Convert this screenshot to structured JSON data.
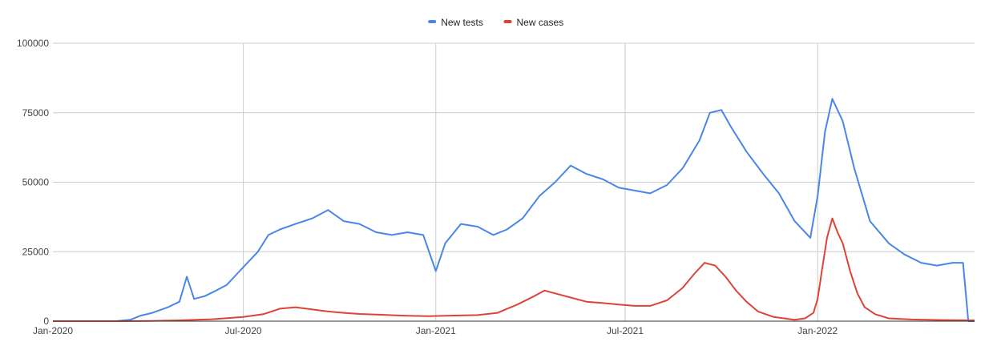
{
  "chart_data": {
    "type": "line",
    "title": "",
    "xlabel": "",
    "ylabel": "",
    "legend_position": "top-center",
    "grid": true,
    "ylim": [
      0,
      100000
    ],
    "xlim": [
      "2020-01-01",
      "2022-05-31"
    ],
    "x_ticks": [
      "Jan-2020",
      "Jul-2020",
      "Jan-2021",
      "Jul-2021",
      "Jan-2022"
    ],
    "y_ticks": [
      "0",
      "25000",
      "50000",
      "75000",
      "100000"
    ],
    "y_tick_values": [
      0,
      25000,
      50000,
      75000,
      100000
    ],
    "x_tick_dates": [
      "2020-01-01",
      "2020-07-01",
      "2021-01-01",
      "2021-07-01",
      "2022-01-01"
    ],
    "series": [
      {
        "name": "New tests",
        "color": "#4a86e8",
        "points": [
          [
            "2020-01-01",
            0
          ],
          [
            "2020-03-01",
            0
          ],
          [
            "2020-03-15",
            500
          ],
          [
            "2020-03-25",
            2000
          ],
          [
            "2020-04-05",
            3000
          ],
          [
            "2020-04-20",
            5000
          ],
          [
            "2020-05-01",
            7000
          ],
          [
            "2020-05-08",
            16000
          ],
          [
            "2020-05-15",
            8000
          ],
          [
            "2020-05-25",
            9000
          ],
          [
            "2020-06-05",
            11000
          ],
          [
            "2020-06-15",
            13000
          ],
          [
            "2020-06-25",
            17000
          ],
          [
            "2020-07-05",
            21000
          ],
          [
            "2020-07-15",
            25000
          ],
          [
            "2020-07-25",
            31000
          ],
          [
            "2020-08-05",
            33000
          ],
          [
            "2020-08-20",
            35000
          ],
          [
            "2020-09-05",
            37000
          ],
          [
            "2020-09-20",
            40000
          ],
          [
            "2020-10-05",
            36000
          ],
          [
            "2020-10-20",
            35000
          ],
          [
            "2020-11-05",
            32000
          ],
          [
            "2020-11-20",
            31000
          ],
          [
            "2020-12-05",
            32000
          ],
          [
            "2020-12-20",
            31000
          ],
          [
            "2021-01-01",
            18000
          ],
          [
            "2021-01-10",
            28000
          ],
          [
            "2021-01-25",
            35000
          ],
          [
            "2021-02-10",
            34000
          ],
          [
            "2021-02-25",
            31000
          ],
          [
            "2021-03-10",
            33000
          ],
          [
            "2021-03-25",
            37000
          ],
          [
            "2021-04-10",
            45000
          ],
          [
            "2021-04-25",
            50000
          ],
          [
            "2021-05-10",
            56000
          ],
          [
            "2021-05-25",
            53000
          ],
          [
            "2021-06-10",
            51000
          ],
          [
            "2021-06-25",
            48000
          ],
          [
            "2021-07-10",
            47000
          ],
          [
            "2021-07-25",
            46000
          ],
          [
            "2021-08-10",
            49000
          ],
          [
            "2021-08-25",
            55000
          ],
          [
            "2021-09-10",
            65000
          ],
          [
            "2021-09-20",
            75000
          ],
          [
            "2021-10-01",
            76000
          ],
          [
            "2021-10-10",
            70000
          ],
          [
            "2021-10-25",
            61000
          ],
          [
            "2021-11-10",
            53000
          ],
          [
            "2021-11-25",
            46000
          ],
          [
            "2021-12-10",
            36000
          ],
          [
            "2021-12-25",
            30000
          ],
          [
            "2022-01-01",
            45000
          ],
          [
            "2022-01-08",
            68000
          ],
          [
            "2022-01-15",
            80000
          ],
          [
            "2022-01-25",
            72000
          ],
          [
            "2022-02-05",
            55000
          ],
          [
            "2022-02-20",
            36000
          ],
          [
            "2022-03-10",
            28000
          ],
          [
            "2022-03-25",
            24000
          ],
          [
            "2022-04-10",
            21000
          ],
          [
            "2022-04-25",
            20000
          ],
          [
            "2022-05-10",
            21000
          ],
          [
            "2022-05-20",
            21000
          ],
          [
            "2022-05-25",
            0
          ],
          [
            "2022-05-31",
            0
          ]
        ]
      },
      {
        "name": "New cases",
        "color": "#db4437",
        "points": [
          [
            "2020-01-01",
            0
          ],
          [
            "2020-03-01",
            0
          ],
          [
            "2020-04-01",
            100
          ],
          [
            "2020-05-01",
            300
          ],
          [
            "2020-06-01",
            700
          ],
          [
            "2020-07-01",
            1500
          ],
          [
            "2020-07-20",
            2500
          ],
          [
            "2020-08-05",
            4500
          ],
          [
            "2020-08-20",
            5000
          ],
          [
            "2020-09-05",
            4200
          ],
          [
            "2020-09-20",
            3500
          ],
          [
            "2020-10-05",
            3000
          ],
          [
            "2020-10-20",
            2600
          ],
          [
            "2020-11-10",
            2300
          ],
          [
            "2020-12-01",
            2000
          ],
          [
            "2020-12-25",
            1800
          ],
          [
            "2021-01-15",
            2000
          ],
          [
            "2021-02-10",
            2200
          ],
          [
            "2021-03-01",
            3000
          ],
          [
            "2021-03-20",
            6000
          ],
          [
            "2021-04-05",
            9000
          ],
          [
            "2021-04-15",
            11000
          ],
          [
            "2021-04-25",
            10000
          ],
          [
            "2021-05-10",
            8500
          ],
          [
            "2021-05-25",
            7000
          ],
          [
            "2021-06-10",
            6500
          ],
          [
            "2021-06-25",
            6000
          ],
          [
            "2021-07-10",
            5500
          ],
          [
            "2021-07-25",
            5500
          ],
          [
            "2021-08-10",
            7500
          ],
          [
            "2021-08-25",
            12000
          ],
          [
            "2021-09-05",
            17000
          ],
          [
            "2021-09-15",
            21000
          ],
          [
            "2021-09-25",
            20000
          ],
          [
            "2021-10-05",
            16000
          ],
          [
            "2021-10-15",
            11000
          ],
          [
            "2021-10-25",
            7000
          ],
          [
            "2021-11-05",
            3500
          ],
          [
            "2021-11-20",
            1500
          ],
          [
            "2021-12-10",
            500
          ],
          [
            "2021-12-20",
            1000
          ],
          [
            "2021-12-28",
            3000
          ],
          [
            "2022-01-01",
            8000
          ],
          [
            "2022-01-05",
            18000
          ],
          [
            "2022-01-10",
            30000
          ],
          [
            "2022-01-15",
            37000
          ],
          [
            "2022-01-20",
            32000
          ],
          [
            "2022-01-25",
            28000
          ],
          [
            "2022-02-01",
            18000
          ],
          [
            "2022-02-08",
            10000
          ],
          [
            "2022-02-15",
            5000
          ],
          [
            "2022-02-25",
            2500
          ],
          [
            "2022-03-10",
            1000
          ],
          [
            "2022-04-01",
            600
          ],
          [
            "2022-05-01",
            400
          ],
          [
            "2022-05-31",
            300
          ]
        ]
      }
    ]
  }
}
